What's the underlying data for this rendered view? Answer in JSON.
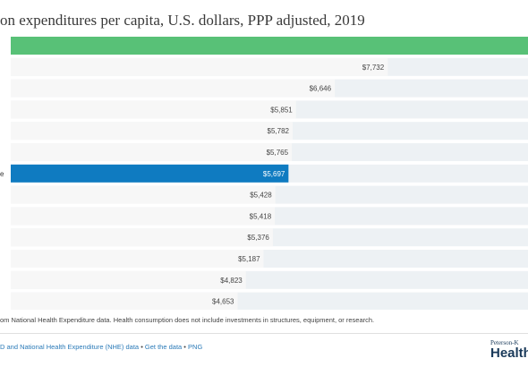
{
  "chart_data": {
    "type": "bar",
    "orientation": "horizontal",
    "title": "on expenditures per capita, U.S. dollars, PPP adjusted, 2019",
    "bars": [
      {
        "value_label": "",
        "value": null,
        "style": "top"
      },
      {
        "value_label": "$7,732",
        "value": 7732,
        "style": "normal"
      },
      {
        "value_label": "$6,646",
        "value": 6646,
        "style": "normal"
      },
      {
        "value_label": "$5,851",
        "value": 5851,
        "style": "normal"
      },
      {
        "value_label": "$5,782",
        "value": 5782,
        "style": "normal"
      },
      {
        "value_label": "$5,765",
        "value": 5765,
        "style": "normal"
      },
      {
        "value_label": "$5,697",
        "value": 5697,
        "style": "highlight",
        "category_label": "e"
      },
      {
        "value_label": "$5,428",
        "value": 5428,
        "style": "normal"
      },
      {
        "value_label": "$5,418",
        "value": 5418,
        "style": "normal"
      },
      {
        "value_label": "$5,376",
        "value": 5376,
        "style": "normal"
      },
      {
        "value_label": "$5,187",
        "value": 5187,
        "style": "normal"
      },
      {
        "value_label": "$4,823",
        "value": 4823,
        "style": "normal"
      },
      {
        "value_label": "$4,653",
        "value": 4653,
        "style": "normal"
      }
    ],
    "value_max": 10610,
    "colors": {
      "top": "#58c177",
      "highlight": "#0f7bc1",
      "normal": "#f7f7f7",
      "track": "#edf1f4"
    }
  },
  "footer": {
    "note": "om National Health Expenditure data. Health consumption does not include investments in structures, equipment, or research.",
    "source_text": "D and National Health Expenditure (NHE) data",
    "sep": "•",
    "get_data": "Get the data",
    "png": "PNG",
    "logo_line1": "Peterson-K",
    "logo_line2": "Health"
  }
}
